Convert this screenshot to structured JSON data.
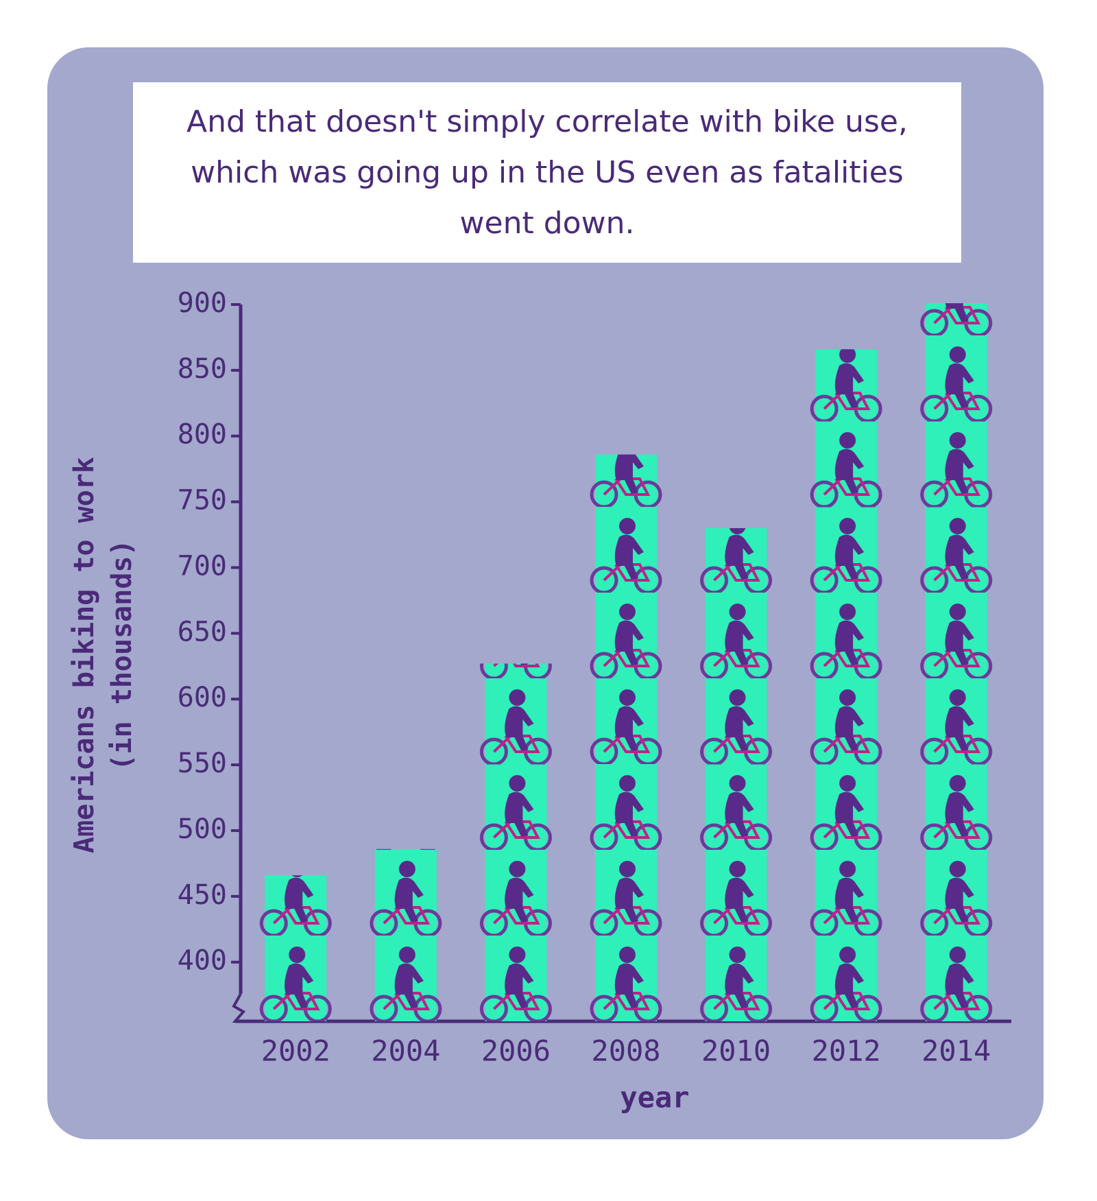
{
  "chart_data": {
    "type": "bar",
    "title": "And that doesn't simply correlate with bike use, which was going up in the US even as fatalities went down.",
    "ylabel": [
      "Americans biking to work",
      "(in thousands)"
    ],
    "xlabel": "year",
    "categories": [
      "2002",
      "2004",
      "2006",
      "2008",
      "2010",
      "2012",
      "2014"
    ],
    "values": [
      466,
      486,
      627,
      786,
      730,
      866,
      901
    ],
    "color": "#2ef0b8",
    "ylim": [
      355,
      900
    ],
    "yticks": [
      400,
      450,
      500,
      550,
      600,
      650,
      700,
      750,
      800,
      850,
      900
    ]
  }
}
